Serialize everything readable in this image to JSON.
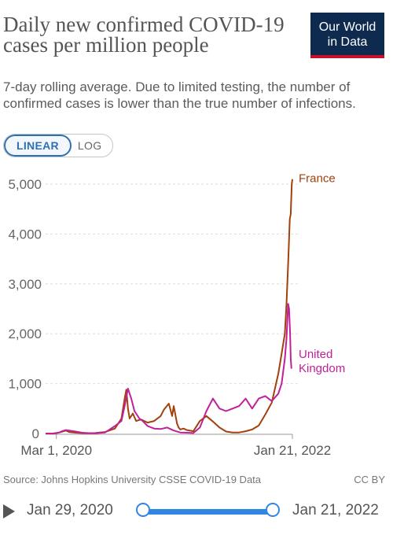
{
  "header": {
    "title": "Daily new confirmed COVID-19 cases per million people",
    "subtitle": "7-day rolling average. Due to limited testing, the number of confirmed cases is lower than the true number of infections.",
    "logo_line1": "Our World",
    "logo_line2": "in Data"
  },
  "scale_toggle": {
    "linear_label": "LINEAR",
    "log_label": "LOG",
    "selected": "LINEAR"
  },
  "footer": {
    "source": "Source: Johns Hopkins University CSSE COVID-19 Data",
    "license": "CC BY"
  },
  "timeline": {
    "start_label": "Jan 29, 2020",
    "end_label": "Jan 21, 2022"
  },
  "colors": {
    "france": "#a2410c",
    "uk": "#c0209a",
    "accent": "#2f70b0",
    "slider": "#2f86e5",
    "logo_bg": "#0f2a4f",
    "logo_bar": "#c4112c"
  },
  "chart_data": {
    "type": "line",
    "title": "Daily new confirmed COVID-19 cases per million people",
    "ylim": [
      0,
      5000
    ],
    "y_ticks": [
      0,
      1000,
      2000,
      3000,
      4000,
      5000
    ],
    "y_tick_labels": [
      "0",
      "1,000",
      "2,000",
      "3,000",
      "4,000",
      "5,000"
    ],
    "x_ticks": [
      1,
      723
    ],
    "x_tick_labels": [
      "Mar 1, 2020",
      "Jan 21, 2022"
    ],
    "xlim": [
      -32,
      723
    ],
    "grid": true,
    "series": [
      {
        "name": "France",
        "color": "#a2410c",
        "x": [
          -32,
          -10,
          0,
          10,
          20,
          30,
          40,
          60,
          80,
          100,
          120,
          150,
          180,
          200,
          210,
          215,
          220,
          225,
          235,
          245,
          260,
          280,
          300,
          320,
          330,
          345,
          355,
          360,
          365,
          370,
          375,
          380,
          390,
          400,
          420,
          440,
          460,
          480,
          500,
          520,
          540,
          560,
          580,
          600,
          620,
          640,
          660,
          680,
          690,
          700,
          705,
          710,
          715,
          718,
          721,
          723
        ],
        "y": [
          0,
          0,
          10,
          20,
          40,
          60,
          30,
          15,
          8,
          5,
          10,
          30,
          100,
          300,
          700,
          880,
          500,
          300,
          400,
          250,
          280,
          220,
          250,
          350,
          480,
          600,
          350,
          550,
          380,
          200,
          120,
          80,
          100,
          70,
          45,
          250,
          350,
          240,
          120,
          40,
          20,
          20,
          45,
          80,
          160,
          380,
          620,
          1200,
          1600,
          2000,
          2600,
          3400,
          4300,
          4400,
          5000,
          5100
        ]
      },
      {
        "name": "United Kingdom",
        "color": "#c0209a",
        "x": [
          -32,
          -10,
          0,
          10,
          20,
          30,
          40,
          60,
          80,
          100,
          120,
          150,
          180,
          200,
          210,
          220,
          230,
          240,
          255,
          265,
          280,
          300,
          320,
          340,
          360,
          380,
          400,
          420,
          440,
          460,
          480,
          500,
          520,
          540,
          560,
          580,
          600,
          620,
          640,
          660,
          680,
          690,
          700,
          705,
          710,
          713,
          716,
          718,
          720
        ],
        "y": [
          0,
          0,
          5,
          20,
          50,
          70,
          60,
          40,
          15,
          8,
          5,
          20,
          150,
          250,
          550,
          900,
          700,
          450,
          300,
          250,
          150,
          100,
          90,
          120,
          60,
          20,
          15,
          10,
          120,
          450,
          700,
          500,
          450,
          500,
          550,
          700,
          500,
          700,
          750,
          650,
          800,
          1000,
          1500,
          1900,
          2600,
          2500,
          2000,
          1500,
          1300
        ]
      }
    ],
    "series_labels": [
      "France",
      "United Kingdom"
    ]
  }
}
